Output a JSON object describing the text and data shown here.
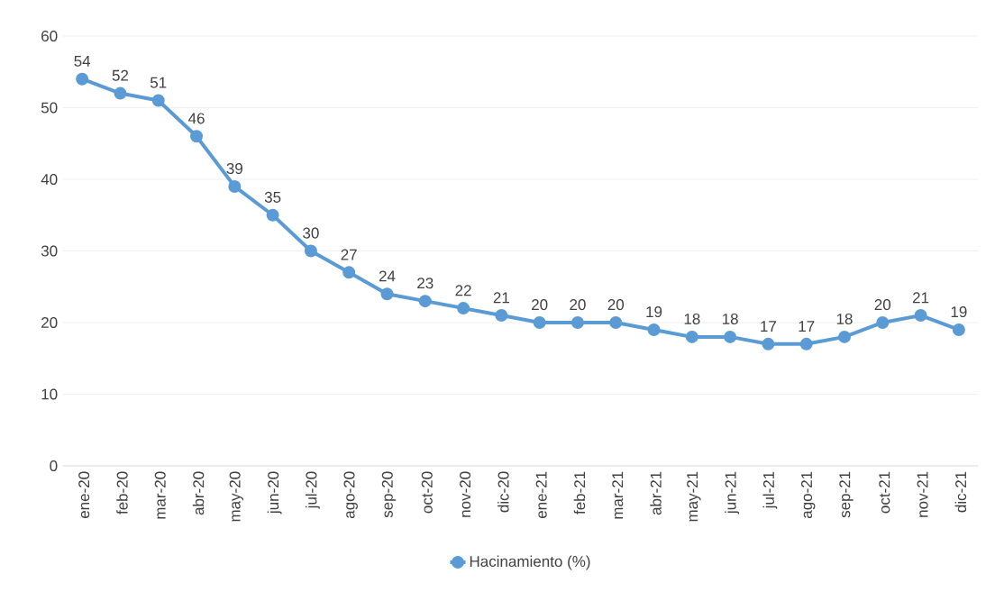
{
  "chart_data": {
    "type": "line",
    "categories": [
      "ene-20",
      "feb-20",
      "mar-20",
      "abr-20",
      "may-20",
      "jun-20",
      "jul-20",
      "ago-20",
      "sep-20",
      "oct-20",
      "nov-20",
      "dic-20",
      "ene-21",
      "feb-21",
      "mar-21",
      "abr-21",
      "may-21",
      "jun-21",
      "jul-21",
      "ago-21",
      "sep-21",
      "oct-21",
      "nov-21",
      "dic-21"
    ],
    "series": [
      {
        "name": "Hacinamiento (%)",
        "color": "#5b9bd5",
        "values": [
          54,
          52,
          51,
          46,
          39,
          35,
          30,
          27,
          24,
          23,
          22,
          21,
          20,
          20,
          20,
          19,
          18,
          18,
          17,
          17,
          18,
          20,
          21,
          19
        ]
      }
    ],
    "ylim": [
      0,
      60
    ],
    "yticks": [
      0,
      10,
      20,
      30,
      40,
      50,
      60
    ],
    "grid": "y",
    "legend": "bottom",
    "marker": "circle",
    "line_style": "solid",
    "data_labels": true
  }
}
